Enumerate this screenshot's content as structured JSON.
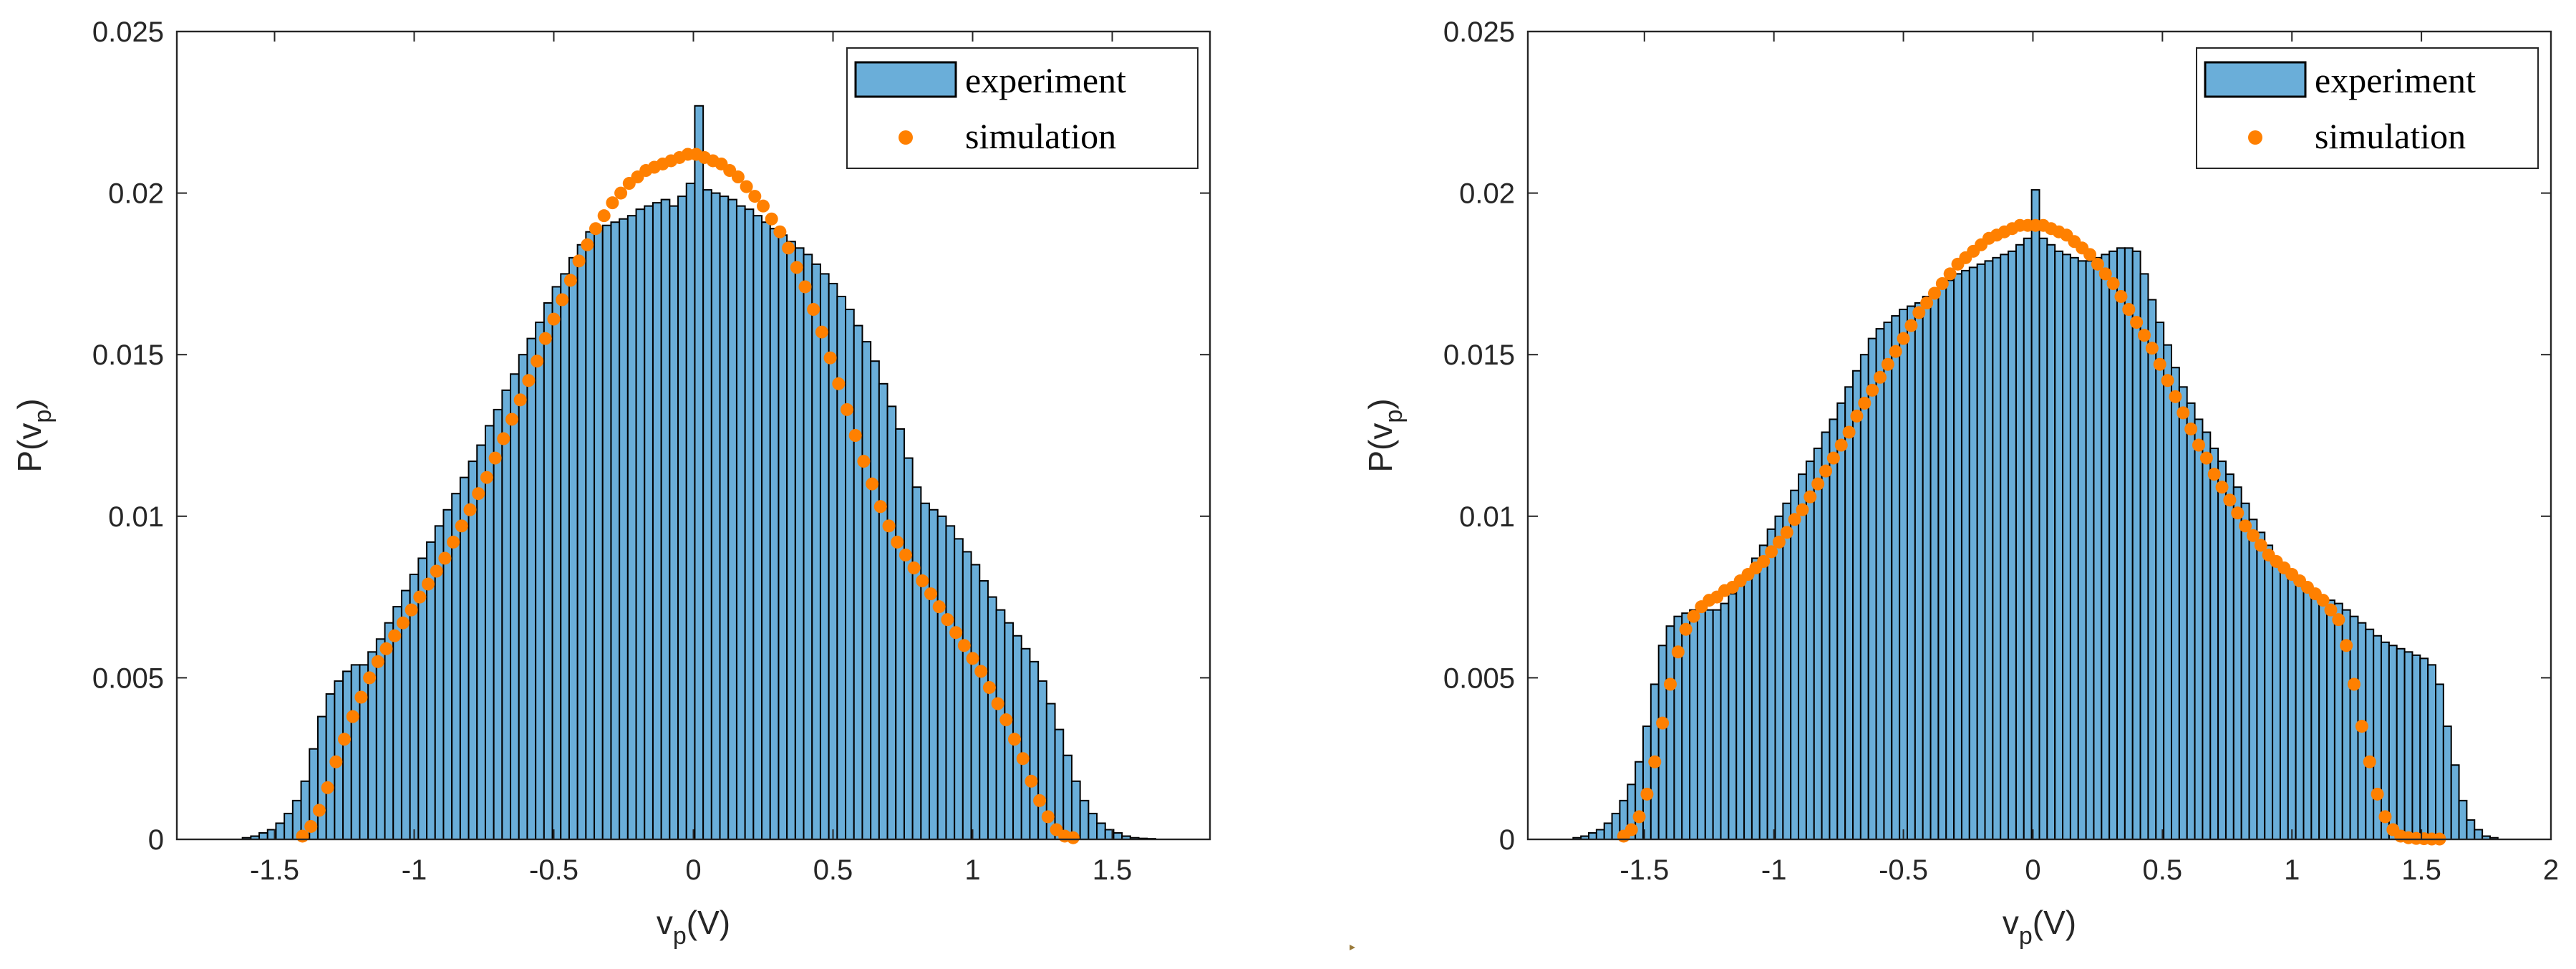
{
  "chart_data": [
    {
      "type": "bar",
      "subtype": "histogram",
      "xlabel": "v_p(V)",
      "ylabel": "P(v_p)",
      "xlim": [
        -1.85,
        1.85
      ],
      "ylim": [
        0,
        0.025
      ],
      "xticks": [
        "-1.5",
        "-1",
        "-0.5",
        "0",
        "0.5",
        "1",
        "1.5"
      ],
      "xtick_values": [
        -1.5,
        -1,
        -0.5,
        0,
        0.5,
        1,
        1.5
      ],
      "yticks": [
        "0",
        "0.005",
        "0.01",
        "0.015",
        "0.02",
        "0.025"
      ],
      "ytick_values": [
        0,
        0.005,
        0.01,
        0.015,
        0.02,
        0.025
      ],
      "grid": false,
      "legend_position": "top-right",
      "bin_width": 0.03,
      "series": [
        {
          "name": "experiment",
          "kind": "histogram",
          "color": "#6aaed9",
          "edge_color": "#000000",
          "x": [
            -1.6,
            -1.57,
            -1.54,
            -1.51,
            -1.48,
            -1.45,
            -1.42,
            -1.39,
            -1.36,
            -1.33,
            -1.3,
            -1.27,
            -1.24,
            -1.21,
            -1.18,
            -1.15,
            -1.12,
            -1.09,
            -1.06,
            -1.03,
            -1.0,
            -0.97,
            -0.94,
            -0.91,
            -0.88,
            -0.85,
            -0.82,
            -0.79,
            -0.76,
            -0.73,
            -0.7,
            -0.67,
            -0.64,
            -0.61,
            -0.58,
            -0.55,
            -0.52,
            -0.49,
            -0.46,
            -0.43,
            -0.4,
            -0.37,
            -0.34,
            -0.31,
            -0.28,
            -0.25,
            -0.22,
            -0.19,
            -0.16,
            -0.13,
            -0.1,
            -0.07,
            -0.04,
            -0.01,
            0.02,
            0.05,
            0.08,
            0.11,
            0.14,
            0.17,
            0.2,
            0.23,
            0.26,
            0.29,
            0.32,
            0.35,
            0.38,
            0.41,
            0.44,
            0.47,
            0.5,
            0.53,
            0.56,
            0.59,
            0.62,
            0.65,
            0.68,
            0.71,
            0.74,
            0.77,
            0.8,
            0.83,
            0.86,
            0.89,
            0.92,
            0.95,
            0.98,
            1.01,
            1.04,
            1.07,
            1.1,
            1.13,
            1.16,
            1.19,
            1.22,
            1.25,
            1.28,
            1.31,
            1.34,
            1.37,
            1.4,
            1.43,
            1.46,
            1.49,
            1.52,
            1.55,
            1.58,
            1.61,
            1.64
          ],
          "values": [
            5e-05,
            0.0001,
            0.0002,
            0.0003,
            0.0005,
            0.0008,
            0.0012,
            0.0018,
            0.0028,
            0.0038,
            0.0045,
            0.0049,
            0.0052,
            0.0054,
            0.0054,
            0.0058,
            0.0062,
            0.0067,
            0.0072,
            0.0077,
            0.0082,
            0.0087,
            0.0092,
            0.0097,
            0.0102,
            0.0107,
            0.0112,
            0.0117,
            0.0122,
            0.0128,
            0.0133,
            0.0139,
            0.0144,
            0.015,
            0.0155,
            0.016,
            0.0166,
            0.0171,
            0.0175,
            0.018,
            0.0184,
            0.0188,
            0.0189,
            0.019,
            0.0191,
            0.0192,
            0.0193,
            0.0195,
            0.0196,
            0.0197,
            0.0198,
            0.0196,
            0.0199,
            0.0203,
            0.0227,
            0.0201,
            0.02,
            0.0199,
            0.0198,
            0.0196,
            0.0195,
            0.0193,
            0.0191,
            0.0189,
            0.0187,
            0.0185,
            0.0183,
            0.0181,
            0.0178,
            0.0175,
            0.0172,
            0.0168,
            0.0164,
            0.0159,
            0.0154,
            0.0148,
            0.0141,
            0.0134,
            0.0127,
            0.0118,
            0.0109,
            0.0104,
            0.0102,
            0.01,
            0.0097,
            0.0093,
            0.0089,
            0.0085,
            0.008,
            0.0075,
            0.0071,
            0.0067,
            0.0063,
            0.0059,
            0.0055,
            0.0049,
            0.0042,
            0.0034,
            0.0026,
            0.0018,
            0.0012,
            0.0008,
            0.0005,
            0.0003,
            0.0002,
            0.0001,
            5e-05,
            3e-05,
            2e-05
          ]
        },
        {
          "name": "simulation",
          "kind": "scatter",
          "color": "#ff8000",
          "x": [
            -1.4,
            -1.37,
            -1.34,
            -1.31,
            -1.28,
            -1.25,
            -1.22,
            -1.19,
            -1.16,
            -1.13,
            -1.1,
            -1.07,
            -1.04,
            -1.01,
            -0.98,
            -0.95,
            -0.92,
            -0.89,
            -0.86,
            -0.83,
            -0.8,
            -0.77,
            -0.74,
            -0.71,
            -0.68,
            -0.65,
            -0.62,
            -0.59,
            -0.56,
            -0.53,
            -0.5,
            -0.47,
            -0.44,
            -0.41,
            -0.38,
            -0.35,
            -0.32,
            -0.29,
            -0.26,
            -0.23,
            -0.2,
            -0.17,
            -0.14,
            -0.11,
            -0.08,
            -0.05,
            -0.02,
            0.01,
            0.04,
            0.07,
            0.1,
            0.13,
            0.16,
            0.19,
            0.22,
            0.25,
            0.28,
            0.31,
            0.34,
            0.37,
            0.4,
            0.43,
            0.46,
            0.49,
            0.52,
            0.55,
            0.58,
            0.61,
            0.64,
            0.67,
            0.7,
            0.73,
            0.76,
            0.79,
            0.82,
            0.85,
            0.88,
            0.91,
            0.94,
            0.97,
            1.0,
            1.03,
            1.06,
            1.09,
            1.12,
            1.15,
            1.18,
            1.21,
            1.24,
            1.27,
            1.3,
            1.33,
            1.36
          ],
          "values": [
            0.0001,
            0.0004,
            0.0009,
            0.0016,
            0.0024,
            0.0031,
            0.0038,
            0.0044,
            0.005,
            0.0055,
            0.0059,
            0.0063,
            0.0067,
            0.0071,
            0.0075,
            0.0079,
            0.0083,
            0.0087,
            0.0092,
            0.0097,
            0.0102,
            0.0107,
            0.0112,
            0.0118,
            0.0124,
            0.013,
            0.0136,
            0.0142,
            0.0148,
            0.0155,
            0.0161,
            0.0167,
            0.0173,
            0.0179,
            0.0184,
            0.0189,
            0.0193,
            0.0197,
            0.02,
            0.0203,
            0.0205,
            0.0207,
            0.0208,
            0.0209,
            0.021,
            0.0211,
            0.0212,
            0.0212,
            0.0211,
            0.021,
            0.0209,
            0.0207,
            0.0205,
            0.0202,
            0.0199,
            0.0196,
            0.0192,
            0.0188,
            0.0183,
            0.0177,
            0.0171,
            0.0164,
            0.0157,
            0.0149,
            0.0141,
            0.0133,
            0.0125,
            0.0117,
            0.011,
            0.0103,
            0.0097,
            0.0092,
            0.0088,
            0.0084,
            0.008,
            0.0076,
            0.0072,
            0.0068,
            0.0064,
            0.006,
            0.0056,
            0.0052,
            0.0047,
            0.0042,
            0.0037,
            0.0031,
            0.0025,
            0.0018,
            0.0012,
            0.0007,
            0.0003,
            0.0001,
            5e-05
          ]
        }
      ]
    },
    {
      "type": "bar",
      "subtype": "histogram",
      "xlabel": "v_p(V)",
      "ylabel": "P(v_p)",
      "xlim": [
        -1.95,
        2.0
      ],
      "ylim": [
        0,
        0.025
      ],
      "xticks": [
        "-1.5",
        "-1",
        "-0.5",
        "0",
        "0.5",
        "1",
        "1.5",
        "2"
      ],
      "xtick_values": [
        -1.5,
        -1,
        -0.5,
        0,
        0.5,
        1,
        1.5,
        2
      ],
      "yticks": [
        "0",
        "0.005",
        "0.01",
        "0.015",
        "0.02",
        "0.025"
      ],
      "ytick_values": [
        0,
        0.005,
        0.01,
        0.015,
        0.02,
        0.025
      ],
      "grid": false,
      "legend_position": "top-right",
      "bin_width": 0.03,
      "series": [
        {
          "name": "experiment",
          "kind": "histogram",
          "color": "#6aaed9",
          "edge_color": "#000000",
          "x": [
            -1.76,
            -1.73,
            -1.7,
            -1.67,
            -1.64,
            -1.61,
            -1.58,
            -1.55,
            -1.52,
            -1.49,
            -1.46,
            -1.43,
            -1.4,
            -1.37,
            -1.34,
            -1.31,
            -1.28,
            -1.25,
            -1.22,
            -1.19,
            -1.16,
            -1.13,
            -1.1,
            -1.07,
            -1.04,
            -1.01,
            -0.98,
            -0.95,
            -0.92,
            -0.89,
            -0.86,
            -0.83,
            -0.8,
            -0.77,
            -0.74,
            -0.71,
            -0.68,
            -0.65,
            -0.62,
            -0.59,
            -0.56,
            -0.53,
            -0.5,
            -0.47,
            -0.44,
            -0.41,
            -0.38,
            -0.35,
            -0.32,
            -0.29,
            -0.26,
            -0.23,
            -0.2,
            -0.17,
            -0.14,
            -0.11,
            -0.08,
            -0.05,
            -0.02,
            0.01,
            0.04,
            0.07,
            0.1,
            0.13,
            0.16,
            0.19,
            0.22,
            0.25,
            0.28,
            0.31,
            0.34,
            0.37,
            0.4,
            0.43,
            0.46,
            0.49,
            0.52,
            0.55,
            0.58,
            0.61,
            0.64,
            0.67,
            0.7,
            0.73,
            0.76,
            0.79,
            0.82,
            0.85,
            0.88,
            0.91,
            0.94,
            0.97,
            1.0,
            1.03,
            1.06,
            1.09,
            1.12,
            1.15,
            1.18,
            1.21,
            1.24,
            1.27,
            1.3,
            1.33,
            1.36,
            1.39,
            1.42,
            1.45,
            1.48,
            1.51,
            1.54,
            1.57,
            1.6,
            1.63,
            1.66,
            1.69,
            1.72,
            1.75,
            1.78
          ],
          "values": [
            5e-05,
            0.0001,
            0.0002,
            0.0003,
            0.0005,
            0.0008,
            0.0012,
            0.0017,
            0.0024,
            0.0035,
            0.0048,
            0.006,
            0.0066,
            0.0069,
            0.007,
            0.0071,
            0.0072,
            0.0071,
            0.0071,
            0.0073,
            0.0076,
            0.0079,
            0.0083,
            0.0087,
            0.0091,
            0.0096,
            0.01,
            0.0104,
            0.0108,
            0.0113,
            0.0117,
            0.0121,
            0.0126,
            0.013,
            0.0135,
            0.014,
            0.0145,
            0.015,
            0.0155,
            0.0158,
            0.016,
            0.0162,
            0.0164,
            0.0165,
            0.0166,
            0.0168,
            0.0169,
            0.0171,
            0.0173,
            0.0175,
            0.0176,
            0.0177,
            0.0178,
            0.0179,
            0.018,
            0.0181,
            0.0182,
            0.0184,
            0.0186,
            0.0201,
            0.0186,
            0.0184,
            0.0182,
            0.0181,
            0.018,
            0.0179,
            0.0179,
            0.018,
            0.0181,
            0.0182,
            0.0183,
            0.0183,
            0.0182,
            0.0175,
            0.0167,
            0.016,
            0.0153,
            0.0146,
            0.014,
            0.0135,
            0.013,
            0.0126,
            0.0121,
            0.0117,
            0.0113,
            0.0109,
            0.0104,
            0.0099,
            0.0095,
            0.0091,
            0.0087,
            0.0084,
            0.0081,
            0.0079,
            0.0077,
            0.0076,
            0.0075,
            0.0074,
            0.0073,
            0.0071,
            0.0069,
            0.0067,
            0.0065,
            0.0063,
            0.0061,
            0.006,
            0.0059,
            0.0058,
            0.0057,
            0.0056,
            0.0054,
            0.0048,
            0.0035,
            0.0023,
            0.0012,
            0.0006,
            0.0003,
            0.0001,
            5e-05
          ]
        },
        {
          "name": "simulation",
          "kind": "scatter",
          "color": "#ff8000",
          "x": [
            -1.58,
            -1.55,
            -1.52,
            -1.49,
            -1.46,
            -1.43,
            -1.4,
            -1.37,
            -1.34,
            -1.31,
            -1.28,
            -1.25,
            -1.22,
            -1.19,
            -1.16,
            -1.13,
            -1.1,
            -1.07,
            -1.04,
            -1.01,
            -0.98,
            -0.95,
            -0.92,
            -0.89,
            -0.86,
            -0.83,
            -0.8,
            -0.77,
            -0.74,
            -0.71,
            -0.68,
            -0.65,
            -0.62,
            -0.59,
            -0.56,
            -0.53,
            -0.5,
            -0.47,
            -0.44,
            -0.41,
            -0.38,
            -0.35,
            -0.32,
            -0.29,
            -0.26,
            -0.23,
            -0.2,
            -0.17,
            -0.14,
            -0.11,
            -0.08,
            -0.05,
            -0.02,
            0.01,
            0.04,
            0.07,
            0.1,
            0.13,
            0.16,
            0.19,
            0.22,
            0.25,
            0.28,
            0.31,
            0.34,
            0.37,
            0.4,
            0.43,
            0.46,
            0.49,
            0.52,
            0.55,
            0.58,
            0.61,
            0.64,
            0.67,
            0.7,
            0.73,
            0.76,
            0.79,
            0.82,
            0.85,
            0.88,
            0.91,
            0.94,
            0.97,
            1.0,
            1.03,
            1.06,
            1.09,
            1.12,
            1.15,
            1.18,
            1.21,
            1.24,
            1.27,
            1.3,
            1.33,
            1.36,
            1.39,
            1.42,
            1.45,
            1.48,
            1.51,
            1.54,
            1.57
          ],
          "values": [
            0.0001,
            0.0003,
            0.0007,
            0.0014,
            0.0024,
            0.0036,
            0.0048,
            0.0058,
            0.0065,
            0.0069,
            0.0072,
            0.0074,
            0.0075,
            0.0077,
            0.0078,
            0.008,
            0.0082,
            0.0084,
            0.0086,
            0.0089,
            0.0092,
            0.0095,
            0.0099,
            0.0102,
            0.0106,
            0.011,
            0.0114,
            0.0118,
            0.0122,
            0.0126,
            0.0131,
            0.0135,
            0.0139,
            0.0143,
            0.0147,
            0.0151,
            0.0155,
            0.0159,
            0.0163,
            0.0166,
            0.0169,
            0.0172,
            0.0175,
            0.0178,
            0.018,
            0.0182,
            0.0184,
            0.0186,
            0.0187,
            0.0188,
            0.0189,
            0.019,
            0.019,
            0.019,
            0.019,
            0.0189,
            0.0188,
            0.0187,
            0.0185,
            0.0183,
            0.0181,
            0.0178,
            0.0175,
            0.0172,
            0.0168,
            0.0164,
            0.016,
            0.0156,
            0.0152,
            0.0147,
            0.0142,
            0.0137,
            0.0132,
            0.0127,
            0.0122,
            0.0118,
            0.0113,
            0.0109,
            0.0105,
            0.0101,
            0.0097,
            0.0094,
            0.0091,
            0.0088,
            0.0086,
            0.0084,
            0.0082,
            0.008,
            0.0078,
            0.0076,
            0.0074,
            0.0071,
            0.0068,
            0.006,
            0.0048,
            0.0035,
            0.0024,
            0.0014,
            0.0007,
            0.0003,
            0.0001,
            5e-05,
            3e-05,
            2e-05,
            1e-05,
            1e-05
          ]
        }
      ]
    }
  ]
}
